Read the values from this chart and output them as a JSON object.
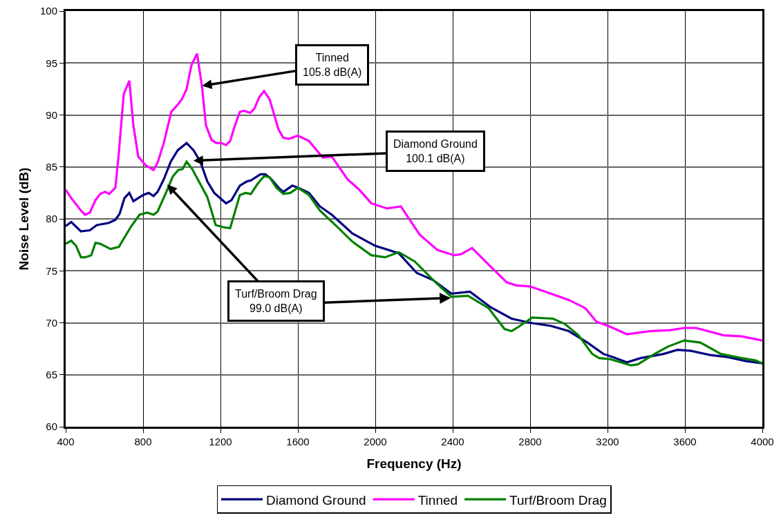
{
  "chart_data": {
    "type": "line",
    "xlabel": "Frequency (Hz)",
    "ylabel": "Noise Level (dB)",
    "xlim": [
      400,
      4000
    ],
    "xticks": [
      400,
      800,
      1200,
      1600,
      2000,
      2400,
      2800,
      3200,
      3600,
      4000
    ],
    "ylim": [
      60,
      100
    ],
    "yticks": [
      60,
      65,
      70,
      75,
      80,
      85,
      90,
      95,
      100
    ],
    "grid": true,
    "legend": "bottom",
    "marker": "none",
    "line_style": "solid",
    "series": [
      {
        "name": "Diamond Ground",
        "color": "#000080",
        "x": [
          400,
          429,
          479,
          525,
          561,
          621,
          657,
          679,
          704,
          729,
          750,
          800,
          829,
          854,
          875,
          907,
          943,
          979,
          1025,
          1061,
          1096,
          1132,
          1168,
          1229,
          1257,
          1300,
          1336,
          1357,
          1407,
          1432,
          1464,
          1500,
          1525,
          1571,
          1600,
          1657,
          1714,
          1775,
          1882,
          2000,
          2121,
          2214,
          2300,
          2393,
          2489,
          2596,
          2704,
          2800,
          2907,
          3000,
          3096,
          3179,
          3229,
          3300,
          3371,
          3489,
          3561,
          3632,
          3729,
          3821,
          3918,
          4000
        ],
        "values": [
          79.3,
          79.7,
          78.8,
          78.9,
          79.4,
          79.6,
          79.9,
          80.5,
          82.0,
          82.5,
          81.7,
          82.3,
          82.5,
          82.2,
          82.6,
          83.8,
          85.5,
          86.6,
          87.3,
          86.6,
          85.5,
          83.6,
          82.5,
          81.5,
          81.8,
          83.2,
          83.6,
          83.7,
          84.3,
          84.3,
          83.8,
          83.0,
          82.6,
          83.2,
          83.0,
          82.5,
          81.2,
          80.4,
          78.6,
          77.4,
          76.7,
          74.8,
          74.1,
          72.8,
          73.0,
          71.5,
          70.4,
          70.0,
          69.7,
          69.2,
          68.1,
          67.0,
          66.7,
          66.2,
          66.6,
          67.0,
          67.4,
          67.3,
          66.9,
          66.7,
          66.3,
          66.1
        ]
      },
      {
        "name": "Tinned",
        "color": "#ff00ff",
        "x": [
          400,
          429,
          479,
          500,
          525,
          554,
          579,
          604,
          625,
          657,
          675,
          700,
          729,
          750,
          775,
          811,
          854,
          875,
          907,
          946,
          979,
          1000,
          1025,
          1050,
          1079,
          1104,
          1125,
          1154,
          1179,
          1204,
          1229,
          1250,
          1275,
          1300,
          1321,
          1354,
          1375,
          1400,
          1425,
          1454,
          1500,
          1525,
          1554,
          1600,
          1657,
          1729,
          1775,
          1857,
          1918,
          1979,
          2061,
          2132,
          2229,
          2321,
          2407,
          2443,
          2500,
          2596,
          2679,
          2729,
          2800,
          2907,
          3000,
          3086,
          3143,
          3204,
          3300,
          3418,
          3525,
          3596,
          3657,
          3800,
          3893,
          4000
        ],
        "values": [
          82.8,
          82.0,
          80.8,
          80.4,
          80.6,
          81.8,
          82.4,
          82.6,
          82.4,
          83.0,
          86.4,
          92.0,
          93.3,
          89.0,
          86.0,
          85.2,
          84.7,
          85.4,
          87.3,
          90.3,
          91.0,
          91.5,
          92.5,
          94.8,
          95.9,
          92.8,
          89.0,
          87.6,
          87.3,
          87.3,
          87.1,
          87.5,
          89.0,
          90.3,
          90.4,
          90.2,
          90.6,
          91.7,
          92.3,
          91.5,
          88.6,
          87.8,
          87.7,
          88.0,
          87.5,
          85.9,
          86.0,
          83.8,
          82.8,
          81.5,
          81.0,
          81.2,
          78.5,
          77.0,
          76.5,
          76.6,
          77.2,
          75.4,
          73.9,
          73.6,
          73.5,
          72.8,
          72.2,
          71.4,
          70.1,
          69.7,
          68.9,
          69.2,
          69.3,
          69.5,
          69.5,
          68.8,
          68.7,
          68.3
        ]
      },
      {
        "name": "Turf/Broom Drag",
        "color": "#008000",
        "x": [
          400,
          429,
          454,
          479,
          500,
          532,
          554,
          579,
          632,
          675,
          739,
          782,
          821,
          854,
          875,
          918,
          954,
          982,
          1004,
          1025,
          1054,
          1132,
          1175,
          1214,
          1250,
          1300,
          1329,
          1357,
          1393,
          1425,
          1454,
          1489,
          1525,
          1561,
          1600,
          1657,
          1714,
          1800,
          1882,
          1979,
          2050,
          2121,
          2204,
          2311,
          2393,
          2479,
          2586,
          2668,
          2704,
          2739,
          2811,
          2918,
          2979,
          3050,
          3121,
          3157,
          3214,
          3321,
          3357,
          3443,
          3511,
          3596,
          3679,
          3786,
          3893,
          3964,
          4000
        ],
        "values": [
          77.6,
          77.9,
          77.4,
          76.3,
          76.3,
          76.5,
          77.7,
          77.6,
          77.1,
          77.3,
          79.3,
          80.4,
          80.6,
          80.4,
          80.7,
          82.5,
          84.1,
          84.7,
          84.8,
          85.5,
          84.8,
          82.1,
          79.4,
          79.2,
          79.1,
          82.3,
          82.5,
          82.4,
          83.4,
          84.1,
          84.0,
          83.0,
          82.4,
          82.5,
          83.0,
          82.3,
          80.8,
          79.3,
          77.8,
          76.5,
          76.3,
          76.8,
          75.9,
          73.9,
          72.5,
          72.6,
          71.4,
          69.4,
          69.2,
          69.6,
          70.5,
          70.4,
          69.9,
          68.8,
          67.0,
          66.6,
          66.5,
          65.9,
          66.0,
          67.0,
          67.7,
          68.3,
          68.1,
          67.0,
          66.6,
          66.4,
          66.1
        ]
      }
    ],
    "annotations": [
      {
        "text": "Tinned\n105.8 dB(A)",
        "x": 1105,
        "y": 92.8
      },
      {
        "text": "Diamond Ground\n100.1 dB(A)",
        "x": 1060,
        "y": 85.6
      },
      {
        "text": "Turf/Broom Drag\n99.0 dB(A)",
        "x": 925,
        "y": 83.3
      }
    ]
  }
}
